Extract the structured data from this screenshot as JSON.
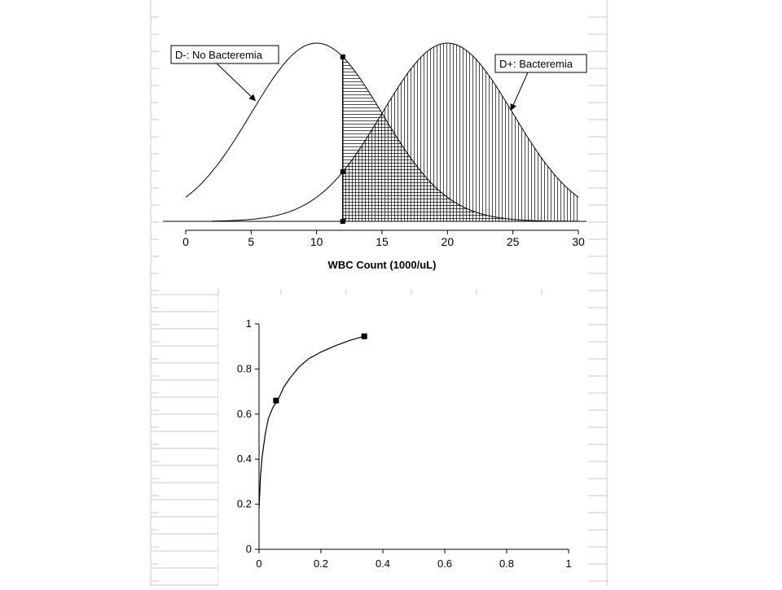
{
  "chart_data": [
    {
      "type": "area",
      "xlabel": "WBC Count (1000/uL)",
      "xlim": [
        0,
        30
      ],
      "x_ticks": [
        "0",
        "5",
        "10",
        "15",
        "20",
        "25",
        "30"
      ],
      "threshold_x": 12,
      "series": [
        {
          "name": "D-: No Bacteremia",
          "distribution": "normal",
          "mean": 10,
          "sd": 5,
          "x_range": [
            0,
            30
          ],
          "shaded_from": 12,
          "hatch": "horizontal"
        },
        {
          "name": "D+: Bacteremia",
          "distribution": "normal",
          "mean": 20,
          "sd": 5,
          "x_range": [
            2,
            30
          ],
          "shaded_from": 12,
          "hatch": "vertical"
        }
      ],
      "legend": [
        "D-: No Bacteremia",
        "D+: Bacteremia"
      ],
      "markers": [
        {
          "x": 12,
          "on": "D-: No Bacteremia"
        },
        {
          "x": 12,
          "on": "D+: Bacteremia"
        },
        {
          "x": 12,
          "on": "baseline"
        }
      ]
    },
    {
      "type": "line",
      "xlim": [
        0,
        1
      ],
      "ylim": [
        0,
        1
      ],
      "x_ticks": [
        "0",
        "0.2",
        "0.4",
        "0.6",
        "0.8",
        "1"
      ],
      "y_ticks": [
        "0",
        "0.2",
        "0.4",
        "0.6",
        "0.8",
        "1"
      ],
      "series": [
        {
          "x": [
            0.0,
            0.005,
            0.01,
            0.02,
            0.03,
            0.045,
            0.06,
            0.08,
            0.1,
            0.13,
            0.16,
            0.2,
            0.25,
            0.3,
            0.34
          ],
          "y": [
            0.18,
            0.33,
            0.41,
            0.51,
            0.58,
            0.63,
            0.66,
            0.72,
            0.76,
            0.81,
            0.845,
            0.875,
            0.905,
            0.93,
            0.945
          ]
        }
      ],
      "points": [
        {
          "x": 0.055,
          "y": 0.66
        },
        {
          "x": 0.34,
          "y": 0.945
        }
      ]
    }
  ]
}
